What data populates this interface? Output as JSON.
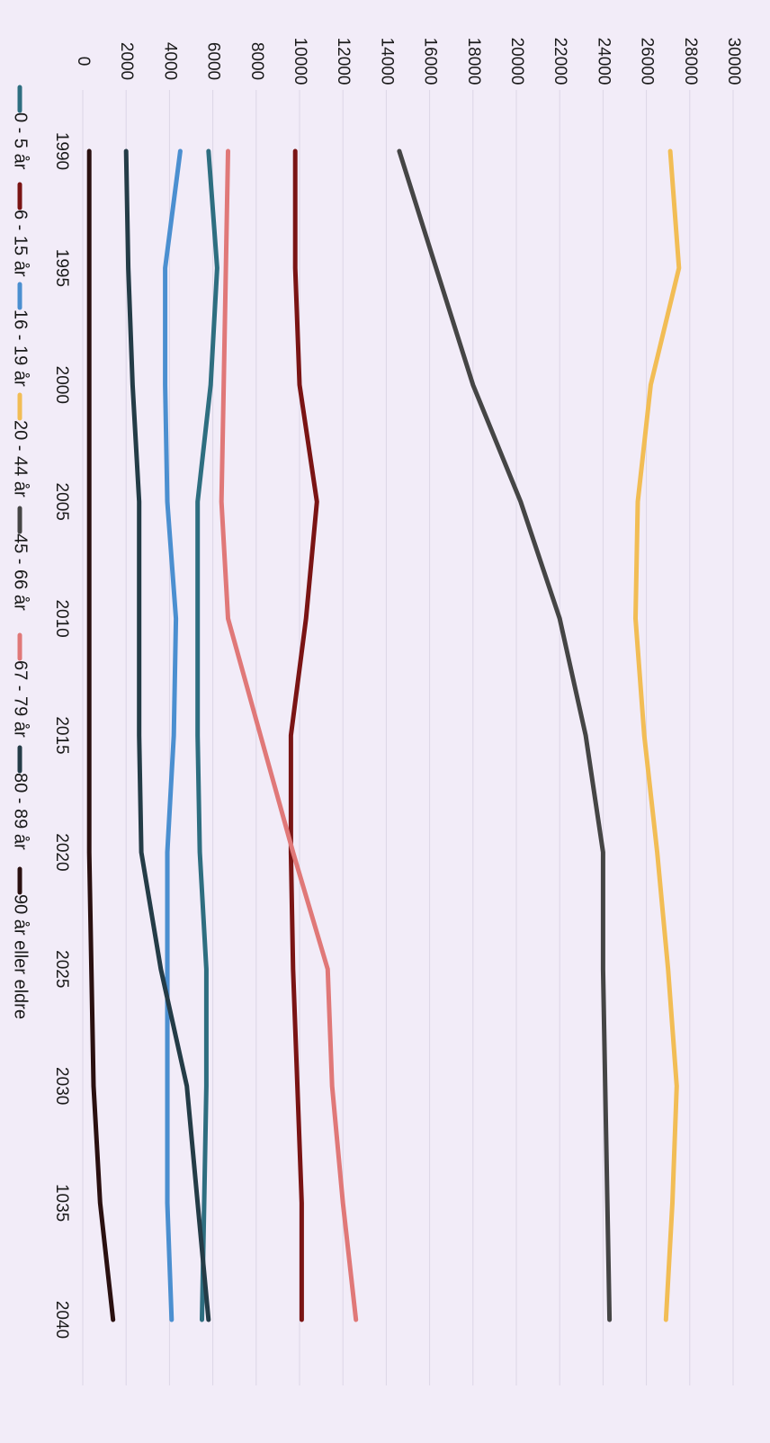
{
  "chart_data": {
    "type": "line",
    "title": "",
    "xlabel": "",
    "ylabel": "",
    "categories": [
      "1990",
      "1995",
      "2000",
      "2005",
      "2010",
      "2015",
      "2020",
      "2025",
      "2030",
      "1035",
      "2040"
    ],
    "ylim": [
      0,
      30000
    ],
    "yticks": [
      0,
      2000,
      4000,
      6000,
      8000,
      10000,
      12000,
      14000,
      16000,
      18000,
      20000,
      22000,
      24000,
      26000,
      28000,
      30000
    ],
    "grid": true,
    "legend_position": "bottom",
    "orientation": "rotated-90-clockwise",
    "series": [
      {
        "name": "0 - 5 år",
        "color": "#2e6e80",
        "values": [
          5800,
          6200,
          5900,
          5300,
          5300,
          5300,
          5400,
          5700,
          5700,
          5600,
          5500
        ]
      },
      {
        "name": "6 - 15 år",
        "color": "#7a1414",
        "values": [
          9800,
          9800,
          10000,
          10800,
          10300,
          9600,
          9600,
          9700,
          9900,
          10100,
          10100
        ]
      },
      {
        "name": "16 - 19 år",
        "color": "#4b8fd0",
        "values": [
          4500,
          3800,
          3800,
          3900,
          4300,
          4200,
          3900,
          3900,
          3900,
          3900,
          4100
        ]
      },
      {
        "name": "20 - 44 år",
        "color": "#f2bd55",
        "values": [
          27100,
          27500,
          26200,
          25600,
          25500,
          25900,
          26500,
          27000,
          27400,
          27200,
          26900
        ]
      },
      {
        "name": "45 - 66 år",
        "color": "#454545",
        "values": [
          14600,
          16300,
          18000,
          20200,
          22000,
          23200,
          24000,
          24000,
          24100,
          24200,
          24300
        ]
      },
      {
        "name": "67 - 79 år",
        "color": "#e07878",
        "values": [
          6700,
          6600,
          6500,
          6400,
          6700,
          8200,
          9700,
          11300,
          11500,
          12000,
          12600
        ]
      },
      {
        "name": "80 - 89 år",
        "color": "#243c47",
        "values": [
          2000,
          2100,
          2300,
          2600,
          2600,
          2600,
          2700,
          3600,
          4800,
          5300,
          5800
        ]
      },
      {
        "name": "90 år eller eldre",
        "color": "#2a1010",
        "values": [
          300,
          300,
          300,
          300,
          300,
          300,
          300,
          400,
          500,
          800,
          1400
        ]
      }
    ]
  }
}
